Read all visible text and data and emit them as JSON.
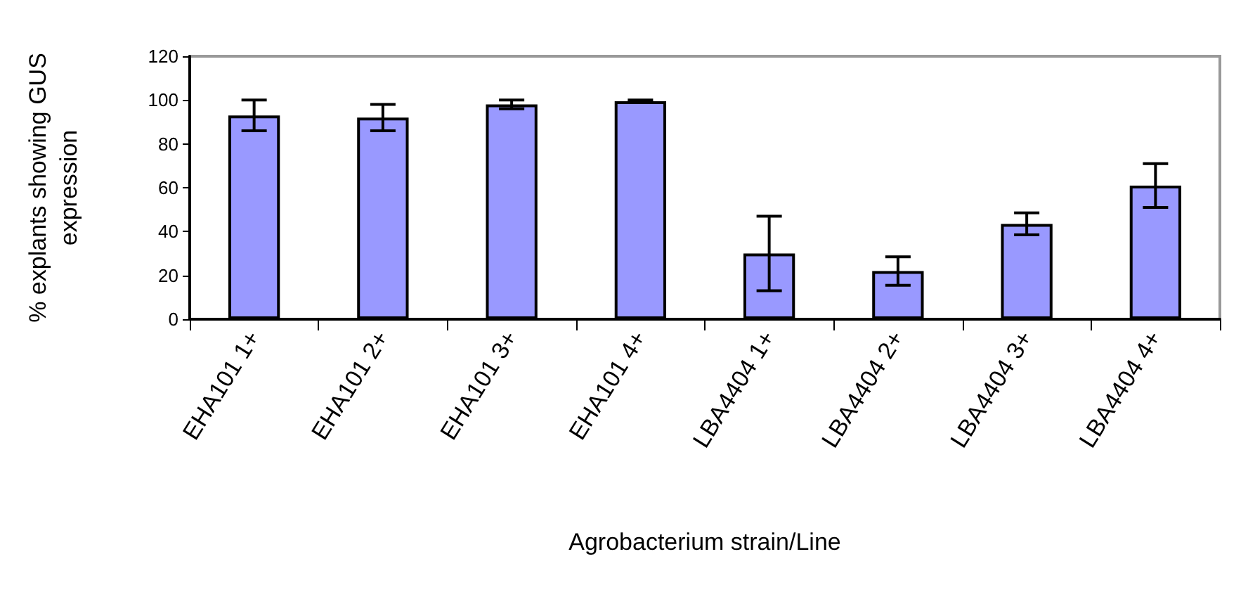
{
  "chart_data": {
    "type": "bar",
    "xlabel": "Agrobacterium strain/Line",
    "ylabel": "% explants showing GUS\nexpression",
    "categories": [
      "EHA101 1+",
      "EHA101 2+",
      "EHA101 3+",
      "EHA101 4+",
      "LBA4404 1+",
      "LBA4404 2+",
      "LBA4404 3+",
      "LBA4404 4+"
    ],
    "values": [
      93,
      92,
      98,
      99.5,
      30,
      22,
      43.5,
      61
    ],
    "errors": [
      7,
      6,
      2,
      0.5,
      17,
      6.5,
      5,
      10
    ],
    "color": "#9999ff",
    "ylim": [
      0,
      120
    ],
    "yticks": [
      0,
      20,
      40,
      60,
      80,
      100,
      120
    ],
    "grid": false
  }
}
